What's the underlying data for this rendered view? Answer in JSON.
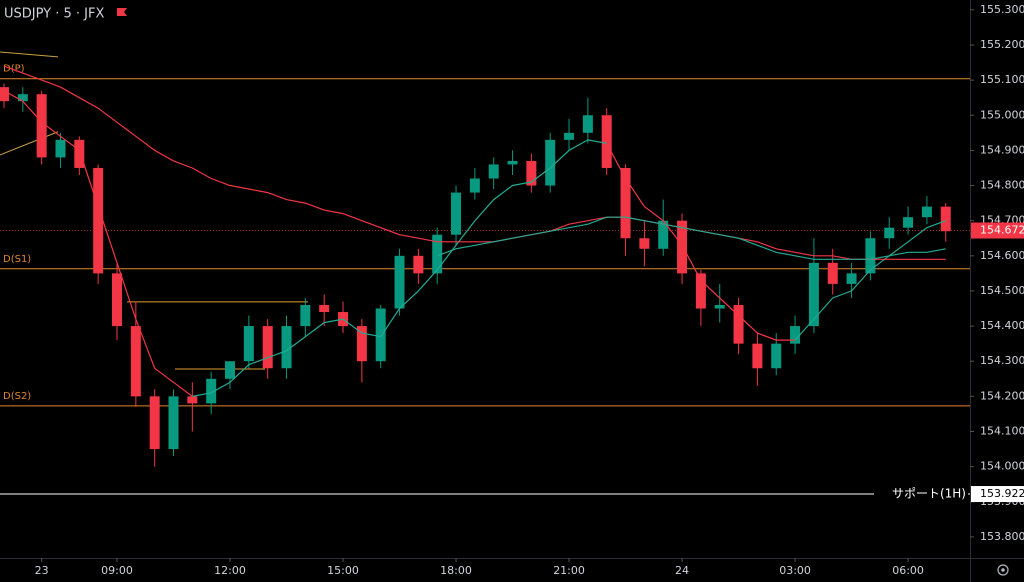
{
  "chart_data": {
    "type": "candlestick",
    "title": "USDJPY · 5 · JFX",
    "x": [
      -3,
      -2.5,
      -2,
      -1.5,
      -1,
      -0.5,
      0,
      0.5,
      1,
      1.5,
      2,
      2.5,
      3,
      3.5,
      4,
      4.5,
      5,
      5.5,
      6,
      6.5,
      7,
      7.5,
      8,
      8.5,
      9,
      9.5,
      10,
      10.5,
      11,
      11.5,
      12,
      12.5,
      13,
      13.5,
      14,
      14.5,
      15,
      15.5,
      16,
      16.5,
      17,
      17.5,
      18,
      18.5,
      19,
      19.5,
      20,
      20.5,
      21,
      21.5,
      22
    ],
    "open": [
      155.08,
      155.04,
      155.06,
      154.88,
      154.93,
      154.85,
      154.55,
      154.4,
      154.2,
      154.05,
      154.2,
      154.18,
      154.25,
      154.3,
      154.4,
      154.28,
      154.4,
      154.46,
      154.44,
      154.4,
      154.3,
      154.45,
      154.6,
      154.55,
      154.66,
      154.78,
      154.82,
      154.86,
      154.87,
      154.8,
      154.93,
      154.95,
      155.0,
      154.85,
      154.65,
      154.62,
      154.7,
      154.55,
      154.45,
      154.46,
      154.35,
      154.28,
      154.35,
      154.4,
      154.58,
      154.52,
      154.55,
      154.65,
      154.68,
      154.71,
      154.74
    ],
    "high": [
      155.09,
      155.08,
      155.07,
      154.95,
      154.94,
      154.86,
      154.58,
      154.47,
      154.22,
      154.22,
      154.24,
      154.27,
      154.3,
      154.43,
      154.42,
      154.43,
      154.48,
      154.49,
      154.47,
      154.42,
      154.46,
      154.62,
      154.62,
      154.68,
      154.8,
      154.85,
      154.88,
      154.9,
      154.89,
      154.95,
      154.99,
      155.05,
      155.02,
      154.86,
      154.7,
      154.76,
      154.72,
      154.56,
      154.52,
      154.48,
      154.38,
      154.38,
      154.43,
      154.65,
      154.62,
      154.58,
      154.67,
      154.71,
      154.74,
      154.77,
      154.75
    ],
    "low": [
      155.02,
      155.01,
      154.86,
      154.85,
      154.83,
      154.52,
      154.36,
      154.17,
      154.0,
      154.03,
      154.1,
      154.15,
      154.22,
      154.28,
      154.25,
      154.25,
      154.37,
      154.4,
      154.38,
      154.24,
      154.28,
      154.43,
      154.52,
      154.52,
      154.63,
      154.76,
      154.79,
      154.83,
      154.78,
      154.78,
      154.9,
      154.92,
      154.83,
      154.6,
      154.57,
      154.6,
      154.52,
      154.4,
      154.41,
      154.32,
      154.23,
      154.26,
      154.32,
      154.38,
      154.49,
      154.48,
      154.53,
      154.62,
      154.66,
      154.69,
      154.64
    ],
    "close": [
      155.04,
      155.06,
      154.88,
      154.93,
      154.85,
      154.55,
      154.4,
      154.2,
      154.05,
      154.2,
      154.18,
      154.25,
      154.3,
      154.4,
      154.28,
      154.4,
      154.46,
      154.44,
      154.4,
      154.3,
      154.45,
      154.6,
      154.55,
      154.66,
      154.78,
      154.82,
      154.86,
      154.87,
      154.8,
      154.93,
      154.95,
      155.0,
      154.85,
      154.65,
      154.62,
      154.7,
      154.55,
      154.45,
      154.46,
      154.35,
      154.28,
      154.35,
      154.4,
      154.58,
      154.52,
      154.55,
      154.65,
      154.68,
      154.71,
      154.74,
      154.67
    ],
    "up_color": "#089981",
    "down_color": "#f23645",
    "series": [
      {
        "color": "#f23645",
        "values": [
          155.07,
          155.04,
          154.98,
          154.94,
          154.9,
          154.74,
          154.58,
          154.42,
          154.28,
          154.24,
          154.2,
          null,
          null,
          null,
          null,
          null,
          null,
          null,
          null,
          null,
          null,
          null,
          null,
          null,
          null,
          null,
          null,
          null,
          null,
          null,
          null,
          null,
          154.92,
          154.82,
          154.74,
          154.7,
          154.63,
          154.53,
          154.48,
          154.43,
          154.38,
          154.36,
          154.36,
          null,
          null,
          null,
          null,
          null,
          null,
          null,
          null
        ]
      },
      {
        "color": "#22ab94",
        "values": [
          null,
          null,
          null,
          null,
          null,
          null,
          null,
          null,
          null,
          null,
          154.2,
          154.21,
          154.24,
          154.29,
          154.31,
          154.33,
          154.37,
          154.41,
          154.42,
          154.38,
          154.37,
          154.45,
          154.5,
          154.56,
          154.63,
          154.7,
          154.76,
          154.8,
          154.81,
          154.85,
          154.9,
          154.93,
          154.92,
          null,
          null,
          null,
          null,
          null,
          null,
          null,
          null,
          null,
          154.36,
          154.42,
          154.48,
          154.5,
          154.56,
          154.6,
          154.64,
          154.68,
          154.7
        ]
      },
      {
        "color": "#f23645",
        "values": [
          155.14,
          155.12,
          155.1,
          155.08,
          155.05,
          155.02,
          154.98,
          154.94,
          154.9,
          154.87,
          154.85,
          154.82,
          154.8,
          154.79,
          154.78,
          154.76,
          154.75,
          154.73,
          154.72,
          154.7,
          154.68,
          154.66,
          154.65,
          154.64,
          154.64,
          154.64,
          154.64,
          154.65,
          154.66,
          154.67,
          154.69,
          154.7,
          154.71,
          154.71,
          154.7,
          154.69,
          154.68,
          154.67,
          154.66,
          154.65,
          154.64,
          154.62,
          154.61,
          154.6,
          154.6,
          154.59,
          154.59,
          154.59,
          154.59,
          154.59,
          154.59
        ]
      },
      {
        "color": "#22ab94",
        "values": [
          null,
          null,
          null,
          null,
          null,
          null,
          null,
          null,
          null,
          null,
          null,
          null,
          null,
          null,
          null,
          null,
          null,
          null,
          null,
          null,
          null,
          null,
          null,
          154.6,
          154.62,
          154.63,
          154.64,
          154.65,
          154.66,
          154.67,
          154.68,
          154.69,
          154.71,
          154.71,
          154.7,
          154.69,
          154.68,
          154.67,
          154.66,
          154.65,
          154.63,
          154.61,
          154.6,
          154.59,
          154.59,
          154.59,
          154.59,
          154.6,
          154.61,
          154.61,
          154.62
        ]
      }
    ],
    "levels": [
      {
        "label": "D(P)",
        "value": 155.104,
        "color": "#e0872b"
      },
      {
        "label": "D(S1)",
        "value": 154.563,
        "color": "#e0872b"
      },
      {
        "label": "D(S2)",
        "value": 154.173,
        "color": "#e0872b"
      }
    ],
    "support": {
      "label": "サポート(1H)",
      "value": 153.922,
      "color": "#ffffff"
    },
    "last_price": {
      "value": 154.672,
      "color": "#f23645"
    },
    "segments": [
      {
        "x": [
          0.27,
          5.07
        ],
        "y": [
          154.469,
          154.469
        ],
        "color": "#e0a030"
      },
      {
        "x": [
          1.54,
          3.93
        ],
        "y": [
          154.278,
          154.278
        ],
        "color": "#e0a030"
      },
      {
        "x": [
          -3.106,
          -1.566
        ],
        "y": [
          155.18,
          155.166
        ],
        "color": "#c8a040"
      },
      {
        "x": [
          -3.106,
          -1.566
        ],
        "y": [
          154.887,
          154.953
        ],
        "color": "#c8a040"
      }
    ],
    "xlim": [
      -3.106,
      22.644
    ],
    "xticks": [
      {
        "value": -2,
        "label": "23"
      },
      {
        "value": 0,
        "label": "09:00"
      },
      {
        "value": 3,
        "label": "12:00"
      },
      {
        "value": 6,
        "label": "15:00"
      },
      {
        "value": 9,
        "label": "18:00"
      },
      {
        "value": 12,
        "label": "21:00"
      },
      {
        "value": 15,
        "label": "24"
      },
      {
        "value": 18,
        "label": "03:00"
      },
      {
        "value": 21,
        "label": "06:00"
      }
    ],
    "ylim": [
      153.74,
      155.328
    ],
    "yticks": [
      {
        "value": 153.8,
        "label": "153.800"
      },
      {
        "value": 153.9,
        "label": "153.900"
      },
      {
        "value": 154.0,
        "label": "154.000"
      },
      {
        "value": 154.1,
        "label": "154.100"
      },
      {
        "value": 154.2,
        "label": "154.200"
      },
      {
        "value": 154.3,
        "label": "154.300"
      },
      {
        "value": 154.4,
        "label": "154.400"
      },
      {
        "value": 154.5,
        "label": "154.500"
      },
      {
        "value": 154.6,
        "label": "154.600"
      },
      {
        "value": 154.7,
        "label": "154.700"
      },
      {
        "value": 154.8,
        "label": "154.800"
      },
      {
        "value": 154.9,
        "label": "154.900"
      },
      {
        "value": 155.0,
        "label": "155.000"
      },
      {
        "value": 155.1,
        "label": "155.100"
      },
      {
        "value": 155.2,
        "label": "155.200"
      },
      {
        "value": 155.3,
        "label": "155.300"
      }
    ],
    "grid": false
  }
}
